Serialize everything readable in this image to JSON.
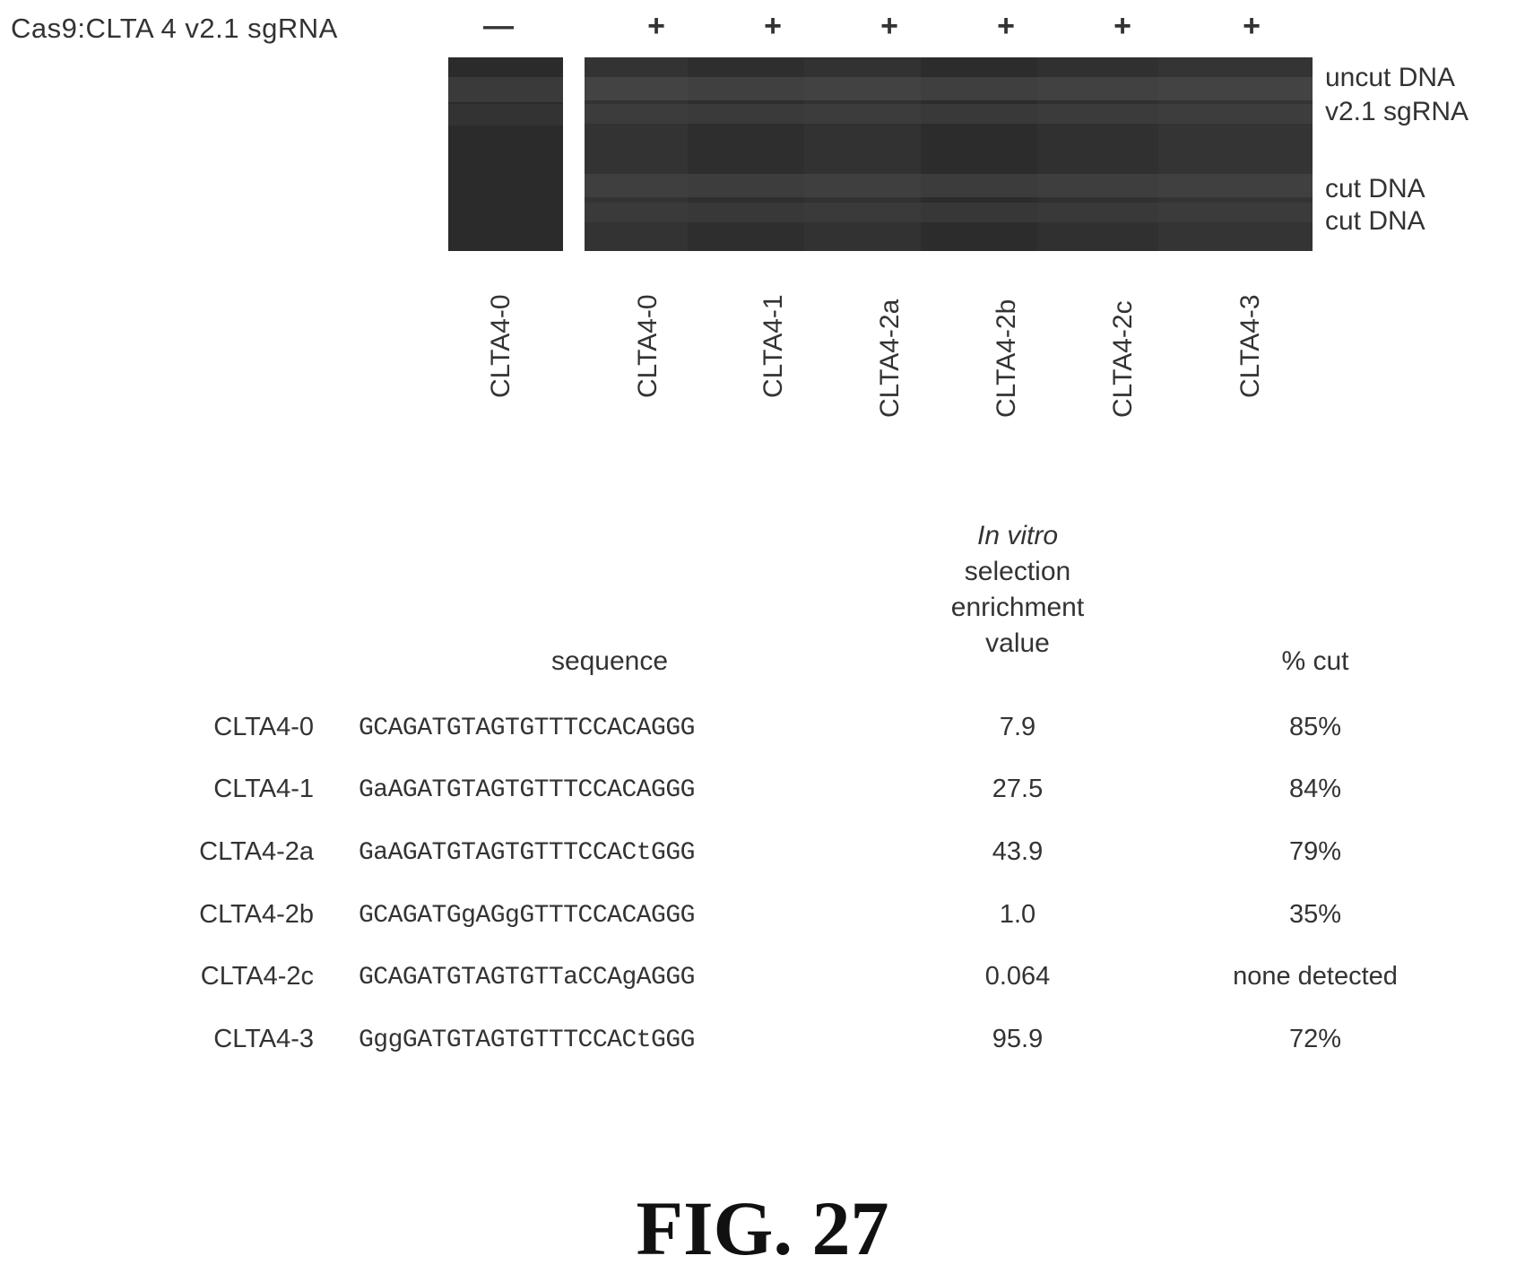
{
  "condition_label": "Cas9:CLTA 4 v2.1 sgRNA",
  "signs": [
    "—",
    "+",
    "+",
    "+",
    "+",
    "+",
    "+"
  ],
  "gel": {
    "band_labels": [
      "uncut DNA",
      "v2.1 sgRNA",
      "cut DNA",
      "cut DNA"
    ],
    "lanes": [
      "CLTA4-0",
      "CLTA4-0",
      "CLTA4-1",
      "CLTA4-2a",
      "CLTA4-2b",
      "CLTA4-2c",
      "CLTA4-3"
    ]
  },
  "table": {
    "headers": {
      "sequence": "sequence",
      "enrichment_line1": "In vitro",
      "enrichment_line2": "selection",
      "enrichment_line3": "enrichment",
      "enrichment_line4": "value",
      "cut": "% cut"
    },
    "rows": [
      {
        "name": "CLTA4-0",
        "sequence": "GCAGATGTAGTGTTTCCACAGGG",
        "value": "7.9",
        "cut": "85%"
      },
      {
        "name": "CLTA4-1",
        "sequence": "GaAGATGTAGTGTTTCCACAGGG",
        "value": "27.5",
        "cut": "84%"
      },
      {
        "name": "CLTA4-2a",
        "sequence": "GaAGATGTAGTGTTTCCACtGGG",
        "value": "43.9",
        "cut": "79%"
      },
      {
        "name": "CLTA4-2b",
        "sequence": "GCAGATGgAGgGTTTCCACAGGG",
        "value": "1.0",
        "cut": "35%"
      },
      {
        "name": "CLTA4-2c",
        "sequence": "GCAGATGTAGTGTTaCCAgAGGG",
        "value": "0.064",
        "cut": "none detected"
      },
      {
        "name": "CLTA4-3",
        "sequence": "GggGATGTAGTGTTTCCACtGGG",
        "value": "95.9",
        "cut": "72%"
      }
    ]
  },
  "figure_label": "FIG. 27"
}
